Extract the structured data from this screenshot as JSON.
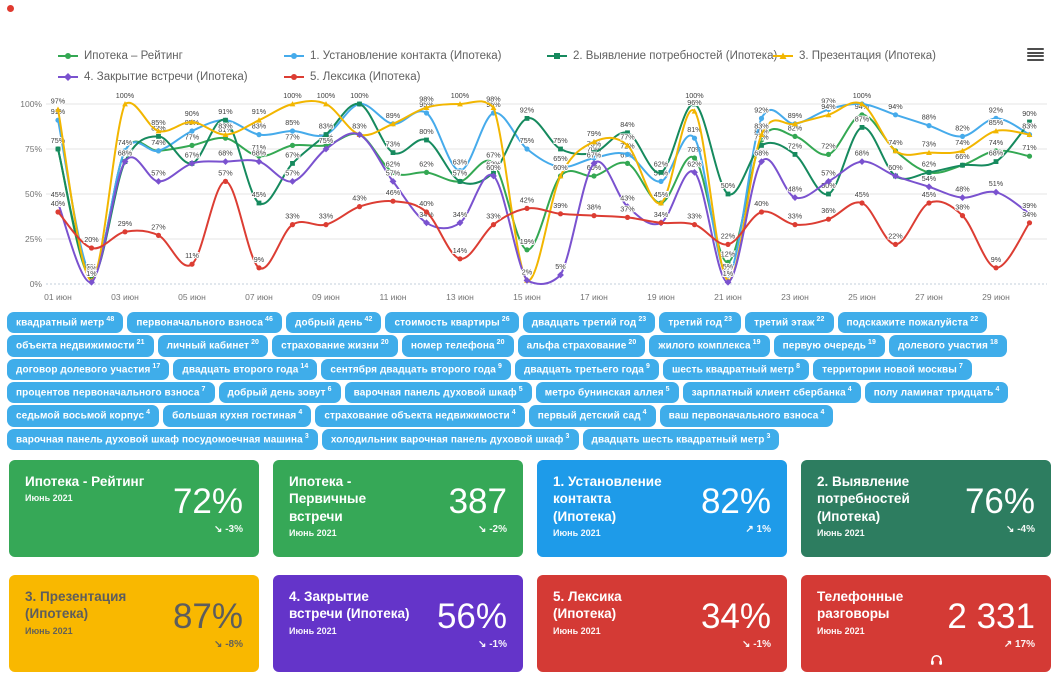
{
  "legend": {
    "items": [
      {
        "label": "Ипотека – Рейтинг",
        "color": "#34a853",
        "marker": "circle"
      },
      {
        "label": "1. Установление контакта (Ипотека)",
        "color": "#46abeb",
        "marker": "circle"
      },
      {
        "label": "2. Выявление потребностей (Ипотека)",
        "color": "#168a5e",
        "marker": "square"
      },
      {
        "label": "3. Презентация (Ипотека)",
        "color": "#f2b600",
        "marker": "triangle"
      },
      {
        "label": "4. Закрытие встречи (Ипотека)",
        "color": "#7a52cf",
        "marker": "diamond"
      },
      {
        "label": "5. Лексика (Ипотека)",
        "color": "#dc3d33",
        "marker": "circle"
      }
    ]
  },
  "chart_data": {
    "type": "line",
    "x_days": [
      1,
      2,
      3,
      4,
      5,
      6,
      7,
      8,
      9,
      10,
      11,
      12,
      13,
      14,
      15,
      16,
      17,
      18,
      19,
      20,
      21,
      22,
      23,
      24,
      25,
      26,
      27,
      28,
      29,
      30
    ],
    "x_tick_labels": [
      "01 июн",
      "03 июн",
      "05 июн",
      "07 июн",
      "09 июн",
      "11 июн",
      "13 июн",
      "15 июн",
      "17 июн",
      "19 июн",
      "21 июн",
      "23 июн",
      "25 июн",
      "27 июн",
      "29 июн"
    ],
    "y_ticks": [
      {
        "label": "100%",
        "value": 100
      },
      {
        "label": "75%",
        "value": 75
      },
      {
        "label": "50%",
        "value": 50
      },
      {
        "label": "25%",
        "value": 25
      },
      {
        "label": "0%",
        "value": 0
      }
    ],
    "ylim": [
      0,
      100
    ],
    "grid": true,
    "legend_position": "top",
    "unit": "%",
    "series": [
      {
        "name": "Ипотека – Рейтинг",
        "color": "#34a853",
        "marker": "circle",
        "values": [
          75,
          3,
          74,
          74,
          77,
          81,
          71,
          77,
          77,
          83,
          62,
          62,
          57,
          67,
          19,
          60,
          60,
          67,
          45,
          70,
          12,
          80,
          82,
          72,
          94,
          74,
          62,
          66,
          74,
          71
        ]
      },
      {
        "name": "1. Установление контакта (Ипотека)",
        "color": "#46abeb",
        "marker": "circle",
        "values": [
          91,
          5,
          74,
          74,
          85,
          91,
          83,
          85,
          83,
          100,
          89,
          95,
          63,
          95,
          75,
          65,
          70,
          72,
          57,
          81,
          5,
          92,
          89,
          97,
          100,
          94,
          88,
          82,
          92,
          83
        ]
      },
      {
        "name": "2. Выявление потребностей (Ипотека)",
        "color": "#168a5e",
        "marker": "square",
        "values": [
          75,
          4,
          68,
          82,
          67,
          91,
          45,
          67,
          83,
          100,
          73,
          80,
          57,
          62,
          92,
          75,
          73,
          84,
          62,
          100,
          50,
          77,
          72,
          50,
          87,
          60,
          62,
          66,
          68,
          90
        ]
      },
      {
        "name": "3. Презентация (Ипотека)",
        "color": "#f2b600",
        "marker": "triangle",
        "values": [
          97,
          2,
          100,
          85,
          90,
          83,
          91,
          100,
          100,
          83,
          89,
          98,
          100,
          98,
          2,
          60,
          79,
          77,
          45,
          96,
          2,
          83,
          89,
          94,
          100,
          74,
          73,
          74,
          85,
          83
        ]
      },
      {
        "name": "4. Закрытие встречи (Ипотека)",
        "color": "#7a52cf",
        "marker": "diamond",
        "values": [
          45,
          1,
          68,
          57,
          67,
          68,
          68,
          57,
          75,
          83,
          57,
          34,
          34,
          60,
          2,
          5,
          67,
          43,
          34,
          62,
          1,
          68,
          48,
          57,
          68,
          60,
          54,
          48,
          51,
          39
        ]
      },
      {
        "name": "5. Лексика (Ипотека)",
        "color": "#dc3d33",
        "marker": "circle",
        "values": [
          40,
          20,
          29,
          27,
          11,
          57,
          9,
          33,
          33,
          43,
          46,
          40,
          14,
          33,
          42,
          39,
          38,
          37,
          34,
          33,
          22,
          40,
          33,
          36,
          45,
          22,
          45,
          38,
          9,
          34
        ]
      }
    ]
  },
  "tags": {
    "items": [
      {
        "text": "квадратный метр",
        "count": 48
      },
      {
        "text": "первоначального взноса",
        "count": 46
      },
      {
        "text": "добрый день",
        "count": 42
      },
      {
        "text": "стоимость квартиры",
        "count": 26
      },
      {
        "text": "двадцать третий год",
        "count": 23
      },
      {
        "text": "третий год",
        "count": 23
      },
      {
        "text": "третий этаж",
        "count": 22
      },
      {
        "text": "подскажите пожалуйста",
        "count": 22
      },
      {
        "text": "объекта недвижимости",
        "count": 21
      },
      {
        "text": "личный кабинет",
        "count": 20
      },
      {
        "text": "страхование жизни",
        "count": 20
      },
      {
        "text": "номер телефона",
        "count": 20
      },
      {
        "text": "альфа страхование",
        "count": 20
      },
      {
        "text": "жилого комплекса",
        "count": 19
      },
      {
        "text": "первую очередь",
        "count": 19
      },
      {
        "text": "долевого участия",
        "count": 18
      },
      {
        "text": "договор долевого участия",
        "count": 17
      },
      {
        "text": "двадцать второго года",
        "count": 14
      },
      {
        "text": "сентября двадцать второго года",
        "count": 9
      },
      {
        "text": "двадцать третьего года",
        "count": 9
      },
      {
        "text": "шесть квадратный метр",
        "count": 8
      },
      {
        "text": "территории новой москвы",
        "count": 7
      },
      {
        "text": "процентов первоначального взноса",
        "count": 7
      },
      {
        "text": "добрый день зовут",
        "count": 6
      },
      {
        "text": "варочная панель духовой шкаф",
        "count": 5
      },
      {
        "text": "метро бунинская аллея",
        "count": 5
      },
      {
        "text": "зарплатный клиент сбербанка",
        "count": 4
      },
      {
        "text": "полу ламинат тридцать",
        "count": 4
      },
      {
        "text": "седьмой восьмой корпус",
        "count": 4
      },
      {
        "text": "большая кухня гостиная",
        "count": 4
      },
      {
        "text": "страхование объекта недвижимости",
        "count": 4
      },
      {
        "text": "первый детский сад",
        "count": 4
      },
      {
        "text": "ваш первоначального взноса",
        "count": 4
      },
      {
        "text": "варочная панель духовой шкаф посудомоечная машина",
        "count": 3
      },
      {
        "text": "холодильник варочная панель духовой шкаф",
        "count": 3
      },
      {
        "text": "двадцать шесть квадратный метр",
        "count": 3
      }
    ]
  },
  "cards": {
    "items": [
      {
        "title": "Ипотека - Рейтинг",
        "period": "Июнь 2021",
        "value": "72%",
        "arrow": "↘",
        "delta": "-3%",
        "bg": "#36a857",
        "fg": "#ffffff"
      },
      {
        "title": "Ипотека - Первичные встречи",
        "period": "Июнь 2021",
        "value": "387",
        "arrow": "↘",
        "delta": "-2%",
        "bg": "#36a857",
        "fg": "#ffffff"
      },
      {
        "title": "1. Установление контакта (Ипотека)",
        "period": "Июнь 2021",
        "value": "82%",
        "arrow": "↗",
        "delta": "1%",
        "bg": "#1e9be9",
        "fg": "#ffffff"
      },
      {
        "title": "2. Выявление потребностей (Ипотека)",
        "period": "Июнь 2021",
        "value": "76%",
        "arrow": "↘",
        "delta": "-4%",
        "bg": "#2d7d60",
        "fg": "#ffffff"
      },
      {
        "title": "3. Презентация (Ипотека)",
        "period": "Июнь 2021",
        "value": "87%",
        "arrow": "↘",
        "delta": "-8%",
        "bg": "#f9b800",
        "fg": "#5d5d5d"
      },
      {
        "title": "4. Закрытие встречи (Ипотека)",
        "period": "Июнь 2021",
        "value": "56%",
        "arrow": "↘",
        "delta": "-1%",
        "bg": "#6434c9",
        "fg": "#ffffff"
      },
      {
        "title": "5. Лексика (Ипотека)",
        "period": "Июнь 2021",
        "value": "34%",
        "arrow": "↘",
        "delta": "-1%",
        "bg": "#d43a35",
        "fg": "#ffffff"
      },
      {
        "title": "Телефонные разговоры",
        "period": "Июнь 2021",
        "value": "2 331",
        "arrow": "↗",
        "delta": "17%",
        "bg": "#d43a35",
        "fg": "#ffffff",
        "icon": "headphones"
      }
    ]
  }
}
